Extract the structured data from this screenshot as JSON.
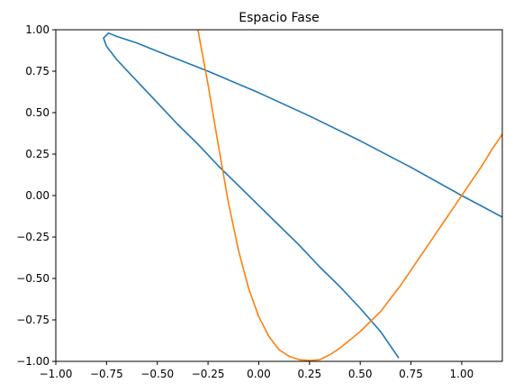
{
  "chart_data": {
    "type": "line",
    "title": "Espacio Fase",
    "xlabel": "",
    "ylabel": "",
    "xlim": [
      -1.0,
      1.2
    ],
    "ylim": [
      -1.0,
      1.0
    ],
    "grid": false,
    "x_ticks": [
      "−1.00",
      "−0.75",
      "−0.50",
      "−0.25",
      "0.00",
      "0.25",
      "0.50",
      "0.75",
      "1.00"
    ],
    "x_tick_values": [
      -1.0,
      -0.75,
      -0.5,
      -0.25,
      0.0,
      0.25,
      0.5,
      0.75,
      1.0
    ],
    "y_ticks": [
      "1.00",
      "0.75",
      "0.50",
      "0.25",
      "0.00",
      "−0.25",
      "−0.50",
      "−0.75",
      "−1.00"
    ],
    "y_tick_values": [
      1.0,
      0.75,
      0.5,
      0.25,
      0.0,
      -0.25,
      -0.5,
      -0.75,
      -1.0
    ],
    "series": [
      {
        "color": "#1f77b4",
        "x": [
          1.2,
          1.0,
          0.75,
          0.5,
          0.25,
          0.0,
          -0.25,
          -0.5,
          -0.6,
          -0.7,
          -0.74,
          -0.765,
          -0.75,
          -0.7,
          -0.6,
          -0.5,
          -0.4,
          -0.3,
          -0.2,
          -0.1,
          0.0,
          0.1,
          0.2,
          0.3,
          0.4,
          0.5,
          0.6,
          0.69
        ],
        "y": [
          -0.13,
          0.0,
          0.17,
          0.33,
          0.48,
          0.62,
          0.75,
          0.87,
          0.92,
          0.96,
          0.98,
          0.95,
          0.9,
          0.82,
          0.69,
          0.56,
          0.43,
          0.31,
          0.18,
          0.06,
          -0.06,
          -0.18,
          -0.3,
          -0.43,
          -0.55,
          -0.68,
          -0.82,
          -0.98
        ]
      },
      {
        "color": "#ff7f0e",
        "x": [
          -0.3,
          -0.25,
          -0.2,
          -0.15,
          -0.1,
          -0.05,
          0.0,
          0.05,
          0.1,
          0.15,
          0.2,
          0.25,
          0.3,
          0.35,
          0.4,
          0.45,
          0.5,
          0.55,
          0.6,
          0.65,
          0.7,
          0.75,
          0.8,
          0.85,
          0.9,
          0.95,
          1.0,
          1.05,
          1.1,
          1.15,
          1.2
        ],
        "y": [
          1.0,
          0.67,
          0.31,
          -0.04,
          -0.33,
          -0.56,
          -0.73,
          -0.85,
          -0.93,
          -0.97,
          -0.99,
          -0.995,
          -0.99,
          -0.96,
          -0.92,
          -0.87,
          -0.82,
          -0.76,
          -0.7,
          -0.62,
          -0.54,
          -0.45,
          -0.36,
          -0.27,
          -0.18,
          -0.09,
          0.0,
          0.09,
          0.18,
          0.28,
          0.37
        ]
      }
    ]
  }
}
